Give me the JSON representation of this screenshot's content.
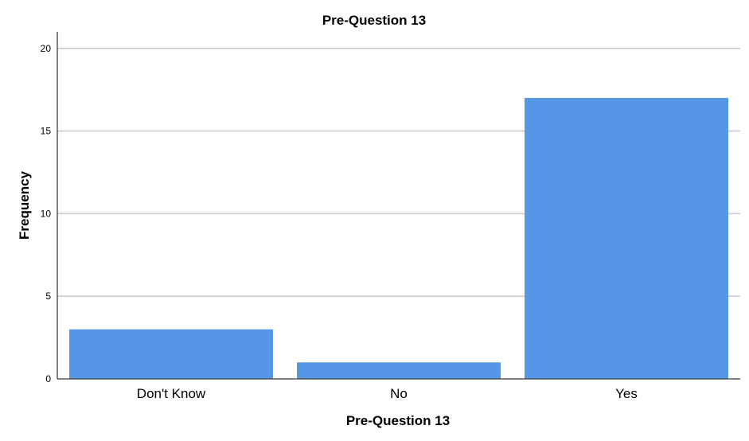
{
  "chart_data": {
    "type": "bar",
    "title": "Pre-Question 13",
    "xlabel": "Pre-Question 13",
    "ylabel": "Frequency",
    "categories": [
      "Don't Know",
      "No",
      "Yes"
    ],
    "values": [
      3,
      1,
      17
    ],
    "ylim": [
      0,
      21
    ],
    "yticks": [
      0,
      5,
      10,
      15,
      20
    ],
    "grid": true,
    "bar_color": "#5596e6"
  }
}
